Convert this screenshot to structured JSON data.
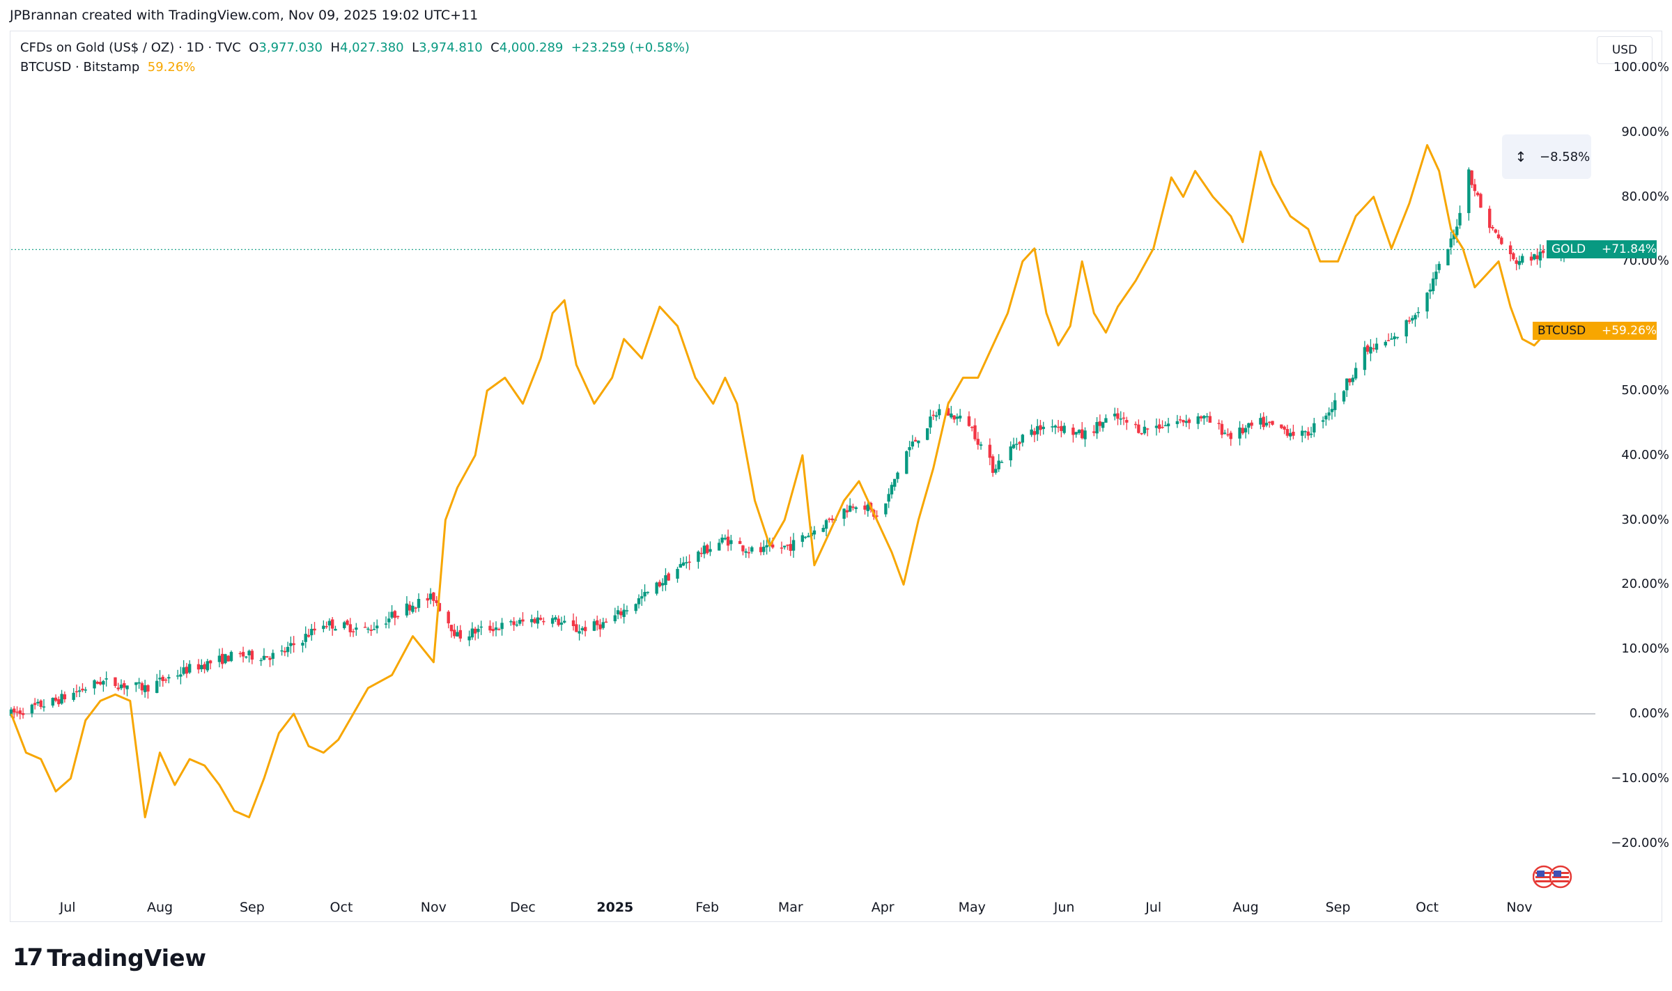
{
  "header": {
    "credit": "JPBrannan created with TradingView.com, Nov 09, 2025 19:02 UTC+11"
  },
  "legend": {
    "gold": {
      "name": "CFDs on Gold (US$ / OZ) · 1D · TVC",
      "o_label": "O",
      "o": "3,977.030",
      "h_label": "H",
      "h": "4,027.380",
      "l_label": "L",
      "l": "3,974.810",
      "c_label": "C",
      "c": "4,000.289",
      "change": "+23.259 (+0.58%)"
    },
    "btc": {
      "name": "BTCUSD · Bitstamp",
      "value": "59.26%"
    }
  },
  "currency_button": "USD",
  "measure_tool": {
    "icon": "measure-icon",
    "value": "−8.58%"
  },
  "tags": {
    "gold": {
      "label": "GOLD",
      "value": "+71.84%"
    },
    "btc": {
      "label": "BTCUSD",
      "value": "+59.26%"
    }
  },
  "brand": {
    "name": "TradingView",
    "icon": "tradingview-logo-icon"
  },
  "colors": {
    "up": "#089981",
    "down": "#f23645",
    "btc": "#f7a600",
    "zero_line": "#b2b5be"
  },
  "chart_data": {
    "type": "line",
    "scale": "percent",
    "ylim": [
      -25,
      100
    ],
    "y_ticks": [
      "100.00%",
      "90.00%",
      "80.00%",
      "70.00%",
      "50.00%",
      "40.00%",
      "30.00%",
      "20.00%",
      "10.00%",
      "0.00%",
      "−10.00%",
      "−20.00%"
    ],
    "x_ticks": [
      "Jul",
      "Aug",
      "Sep",
      "Oct",
      "Nov",
      "Dec",
      "2025",
      "Feb",
      "Mar",
      "Apr",
      "May",
      "Jun",
      "Jul",
      "Aug",
      "Sep",
      "Oct",
      "Nov"
    ],
    "x_tick_days": [
      19,
      50,
      81,
      111,
      142,
      172,
      203,
      234,
      262,
      293,
      323,
      354,
      384,
      415,
      446,
      476,
      507
    ],
    "x_range_days": [
      0,
      522
    ],
    "series": [
      {
        "name": "GOLD",
        "style": "candles",
        "anchors": [
          [
            0,
            0
          ],
          [
            15,
            2
          ],
          [
            30,
            5
          ],
          [
            45,
            4
          ],
          [
            60,
            7
          ],
          [
            75,
            9
          ],
          [
            90,
            9
          ],
          [
            105,
            14
          ],
          [
            120,
            13
          ],
          [
            135,
            17
          ],
          [
            142,
            18
          ],
          [
            150,
            12
          ],
          [
            158,
            13
          ],
          [
            170,
            14
          ],
          [
            180,
            15
          ],
          [
            190,
            13
          ],
          [
            200,
            14
          ],
          [
            215,
            19
          ],
          [
            228,
            24
          ],
          [
            240,
            27
          ],
          [
            250,
            25
          ],
          [
            262,
            26
          ],
          [
            275,
            30
          ],
          [
            285,
            33
          ],
          [
            292,
            30
          ],
          [
            300,
            40
          ],
          [
            312,
            47
          ],
          [
            322,
            45
          ],
          [
            330,
            38
          ],
          [
            340,
            43
          ],
          [
            350,
            45
          ],
          [
            360,
            43
          ],
          [
            370,
            46
          ],
          [
            380,
            44
          ],
          [
            390,
            45
          ],
          [
            400,
            46
          ],
          [
            410,
            43
          ],
          [
            420,
            45
          ],
          [
            435,
            43
          ],
          [
            445,
            48
          ],
          [
            455,
            56
          ],
          [
            465,
            58
          ],
          [
            475,
            64
          ],
          [
            485,
            74
          ],
          [
            490,
            84
          ],
          [
            495,
            77
          ],
          [
            505,
            70
          ],
          [
            515,
            71
          ],
          [
            522,
            71.84
          ]
        ]
      },
      {
        "name": "BTCUSD",
        "style": "line",
        "anchors": [
          [
            0,
            0
          ],
          [
            5,
            -6
          ],
          [
            10,
            -7
          ],
          [
            15,
            -12
          ],
          [
            20,
            -10
          ],
          [
            25,
            -1
          ],
          [
            30,
            2
          ],
          [
            35,
            3
          ],
          [
            40,
            2
          ],
          [
            45,
            -16
          ],
          [
            50,
            -6
          ],
          [
            55,
            -11
          ],
          [
            60,
            -7
          ],
          [
            65,
            -8
          ],
          [
            70,
            -11
          ],
          [
            75,
            -15
          ],
          [
            80,
            -16
          ],
          [
            85,
            -10
          ],
          [
            90,
            -3
          ],
          [
            95,
            0
          ],
          [
            100,
            -5
          ],
          [
            105,
            -6
          ],
          [
            110,
            -4
          ],
          [
            115,
            0
          ],
          [
            120,
            4
          ],
          [
            128,
            6
          ],
          [
            135,
            12
          ],
          [
            142,
            8
          ],
          [
            146,
            30
          ],
          [
            150,
            35
          ],
          [
            156,
            40
          ],
          [
            160,
            50
          ],
          [
            166,
            52
          ],
          [
            172,
            48
          ],
          [
            178,
            55
          ],
          [
            182,
            62
          ],
          [
            186,
            64
          ],
          [
            190,
            54
          ],
          [
            196,
            48
          ],
          [
            202,
            52
          ],
          [
            206,
            58
          ],
          [
            212,
            55
          ],
          [
            218,
            63
          ],
          [
            224,
            60
          ],
          [
            230,
            52
          ],
          [
            236,
            48
          ],
          [
            240,
            52
          ],
          [
            244,
            48
          ],
          [
            250,
            33
          ],
          [
            255,
            26
          ],
          [
            260,
            30
          ],
          [
            266,
            40
          ],
          [
            270,
            23
          ],
          [
            275,
            28
          ],
          [
            280,
            33
          ],
          [
            285,
            36
          ],
          [
            290,
            31
          ],
          [
            296,
            25
          ],
          [
            300,
            20
          ],
          [
            305,
            30
          ],
          [
            310,
            38
          ],
          [
            315,
            48
          ],
          [
            320,
            52
          ],
          [
            325,
            52
          ],
          [
            330,
            57
          ],
          [
            335,
            62
          ],
          [
            340,
            70
          ],
          [
            344,
            72
          ],
          [
            348,
            62
          ],
          [
            352,
            57
          ],
          [
            356,
            60
          ],
          [
            360,
            70
          ],
          [
            364,
            62
          ],
          [
            368,
            59
          ],
          [
            372,
            63
          ],
          [
            378,
            67
          ],
          [
            384,
            72
          ],
          [
            390,
            83
          ],
          [
            394,
            80
          ],
          [
            398,
            84
          ],
          [
            404,
            80
          ],
          [
            410,
            77
          ],
          [
            414,
            73
          ],
          [
            420,
            87
          ],
          [
            424,
            82
          ],
          [
            430,
            77
          ],
          [
            436,
            75
          ],
          [
            440,
            70
          ],
          [
            446,
            70
          ],
          [
            452,
            77
          ],
          [
            458,
            80
          ],
          [
            464,
            72
          ],
          [
            470,
            79
          ],
          [
            476,
            88
          ],
          [
            480,
            84
          ],
          [
            484,
            75
          ],
          [
            488,
            72
          ],
          [
            492,
            66
          ],
          [
            496,
            68
          ],
          [
            500,
            70
          ],
          [
            504,
            63
          ],
          [
            508,
            58
          ],
          [
            512,
            57
          ],
          [
            516,
            59
          ],
          [
            520,
            59.26
          ]
        ]
      }
    ],
    "title": "",
    "xlabel": "",
    "ylabel": ""
  }
}
